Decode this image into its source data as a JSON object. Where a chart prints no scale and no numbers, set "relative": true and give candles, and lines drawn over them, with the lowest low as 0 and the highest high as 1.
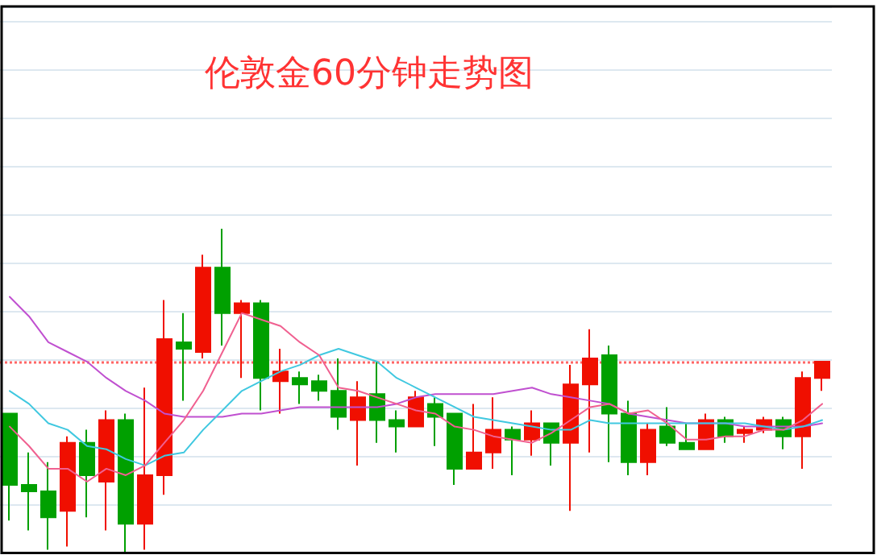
{
  "chart_data": {
    "type": "candlestick",
    "title": "伦敦金60分钟走势图",
    "relative": true,
    "grid": "y",
    "tick_labels": false,
    "marker": "none",
    "categories": [
      null,
      null,
      null,
      null,
      null,
      null,
      null,
      null,
      null,
      null,
      null,
      null,
      null,
      null,
      null,
      null,
      null,
      null,
      null,
      null,
      null,
      null,
      null,
      null,
      null,
      null,
      null,
      null,
      null,
      null,
      null,
      null,
      null,
      null,
      null,
      null,
      null,
      null,
      null,
      null,
      null,
      null,
      null
    ],
    "ohlc": [
      [
        0.43,
        0.43,
        0.1,
        0.21
      ],
      [
        0.21,
        0.31,
        0.07,
        0.19
      ],
      [
        0.19,
        0.28,
        0.01,
        0.11
      ],
      [
        0.13,
        0.36,
        0.02,
        0.34
      ],
      [
        0.34,
        0.38,
        0.11,
        0.24
      ],
      [
        0.22,
        0.44,
        0.07,
        0.41
      ],
      [
        0.41,
        0.43,
        0,
        0.09
      ],
      [
        0.09,
        0.51,
        0.01,
        0.24
      ],
      [
        0.24,
        0.78,
        0.18,
        0.66
      ],
      [
        0.65,
        0.74,
        0.47,
        0.63
      ],
      [
        0.62,
        0.92,
        0.6,
        0.88
      ],
      [
        0.88,
        1,
        0.64,
        0.74
      ],
      [
        0.74,
        0.78,
        0.54,
        0.77
      ],
      [
        0.77,
        0.78,
        0.44,
        0.54
      ],
      [
        0.53,
        0.63,
        0.43,
        0.56
      ],
      [
        0.54,
        0.56,
        0.46,
        0.52
      ],
      [
        0.53,
        0.55,
        0.47,
        0.5
      ],
      [
        0.5,
        0.6,
        0.38,
        0.42
      ],
      [
        0.41,
        0.53,
        0.27,
        0.48
      ],
      [
        0.49,
        0.59,
        0.34,
        0.41
      ],
      [
        0.41,
        0.44,
        0.31,
        0.39
      ],
      [
        0.39,
        0.5,
        0.39,
        0.48
      ],
      [
        0.46,
        0.48,
        0.33,
        0.42
      ],
      [
        0.43,
        0.43,
        0.21,
        0.26
      ],
      [
        0.26,
        0.46,
        0.26,
        0.31
      ],
      [
        0.31,
        0.48,
        0.26,
        0.38
      ],
      [
        0.38,
        0.39,
        0.24,
        0.35
      ],
      [
        0.35,
        0.44,
        0.3,
        0.4
      ],
      [
        0.4,
        0.4,
        0.27,
        0.34
      ],
      [
        0.34,
        0.58,
        0.13,
        0.52
      ],
      [
        0.52,
        0.69,
        0.31,
        0.6
      ],
      [
        0.61,
        0.64,
        0.28,
        0.43
      ],
      [
        0.43,
        0.47,
        0.24,
        0.28
      ],
      [
        0.28,
        0.4,
        0.24,
        0.38
      ],
      [
        0.39,
        0.45,
        0.33,
        0.34
      ],
      [
        0.34,
        0.4,
        0.32,
        0.32
      ],
      [
        0.32,
        0.43,
        0.32,
        0.41
      ],
      [
        0.41,
        0.42,
        0.34,
        0.36
      ],
      [
        0.37,
        0.39,
        0.34,
        0.38
      ],
      [
        0.38,
        0.42,
        0.37,
        0.41
      ],
      [
        0.41,
        0.42,
        0.32,
        0.36
      ],
      [
        0.36,
        0.56,
        0.26,
        0.54
      ],
      [
        0.54,
        0.59,
        0.5,
        0.59
      ]
    ],
    "colors": [
      "#00a000",
      "#00a000",
      "#00a000",
      "#f00f00",
      "#00a000",
      "#f00f00",
      "#00a000",
      "#f00f00",
      "#f00f00",
      "#00a000",
      "#f00f00",
      "#00a000",
      "#f00f00",
      "#00a000",
      "#f00f00",
      "#00a000",
      "#00a000",
      "#00a000",
      "#f00f00",
      "#00a000",
      "#00a000",
      "#f00f00",
      "#00a000",
      "#00a000",
      "#f00f00",
      "#f00f00",
      "#00a000",
      "#f00f00",
      "#00a000",
      "#f00f00",
      "#f00f00",
      "#00a000",
      "#00a000",
      "#f00f00",
      "#00a000",
      "#00a000",
      "#f00f00",
      "#00a000",
      "#f00f00",
      "#f00f00",
      "#00a000",
      "#f00f00",
      "#f00f00"
    ],
    "series": [
      {
        "type": "line",
        "color": "#c050d0",
        "values": [
          0.79,
          0.73,
          0.65,
          0.62,
          0.59,
          0.54,
          0.5,
          0.47,
          0.43,
          0.42,
          0.42,
          0.42,
          0.43,
          0.43,
          0.44,
          0.45,
          0.45,
          0.45,
          0.45,
          0.45,
          0.46,
          0.48,
          0.49,
          0.49,
          0.49,
          0.49,
          0.5,
          0.51,
          0.49,
          0.48,
          0.47,
          0.46,
          0.43,
          0.42,
          0.41,
          0.4,
          0.4,
          0.4,
          0.39,
          0.39,
          0.39,
          0.39,
          0.4
        ]
      },
      {
        "type": "line",
        "color": "#40c8e0",
        "values": [
          0.5,
          0.46,
          0.4,
          0.38,
          0.33,
          0.32,
          0.29,
          0.27,
          0.3,
          0.31,
          0.38,
          0.44,
          0.5,
          0.53,
          0.56,
          0.58,
          0.61,
          0.63,
          0.61,
          0.59,
          0.54,
          0.51,
          0.48,
          0.45,
          0.42,
          0.41,
          0.4,
          0.39,
          0.38,
          0.38,
          0.41,
          0.4,
          0.4,
          0.4,
          0.4,
          0.4,
          0.4,
          0.4,
          0.4,
          0.39,
          0.38,
          0.39,
          0.41
        ]
      },
      {
        "type": "line",
        "color": "#f06090",
        "values": [
          0.39,
          0.33,
          0.26,
          0.26,
          0.22,
          0.26,
          0.24,
          0.27,
          0.34,
          0.41,
          0.5,
          0.62,
          0.74,
          0.72,
          0.7,
          0.65,
          0.61,
          0.51,
          0.5,
          0.48,
          0.46,
          0.44,
          0.43,
          0.39,
          0.38,
          0.36,
          0.35,
          0.34,
          0.37,
          0.41,
          0.45,
          0.46,
          0.43,
          0.44,
          0.4,
          0.35,
          0.35,
          0.36,
          0.36,
          0.38,
          0.38,
          0.41,
          0.46
        ]
      }
    ],
    "ref_lines": [
      {
        "axis": "y",
        "value": 0.59,
        "color": "#ff6666",
        "line_style": "dotted"
      }
    ]
  }
}
